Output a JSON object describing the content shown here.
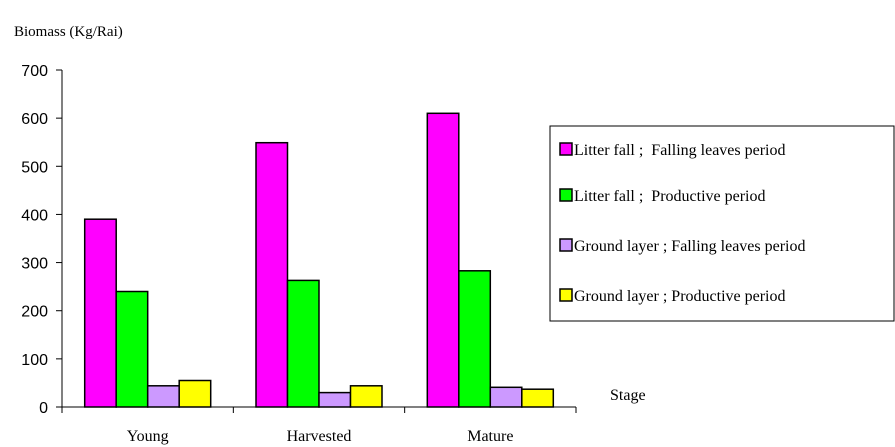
{
  "chart_data": {
    "type": "bar",
    "ylabel": "Biomass (Kg/Rai)",
    "xlabel": "Stage",
    "categories": [
      "Young",
      "Harvested",
      "Mature"
    ],
    "ylim": [
      0,
      700
    ],
    "yticks": [
      0,
      100,
      200,
      300,
      400,
      500,
      600,
      700
    ],
    "grid": false,
    "legend_position": "right",
    "series": [
      {
        "name": "Litter fall ;  Falling leaves period",
        "color": "#ff00ff",
        "values": [
          390,
          549,
          610
        ]
      },
      {
        "name": "Litter fall ;  Productive period",
        "color": "#00ff00",
        "values": [
          240,
          263,
          283
        ]
      },
      {
        "name": "Ground layer ; Falling leaves period",
        "color": "#cc99ff",
        "values": [
          44,
          30,
          41
        ]
      },
      {
        "name": "Ground layer ; Productive period",
        "color": "#ffff00",
        "values": [
          55,
          44,
          37
        ]
      }
    ]
  }
}
